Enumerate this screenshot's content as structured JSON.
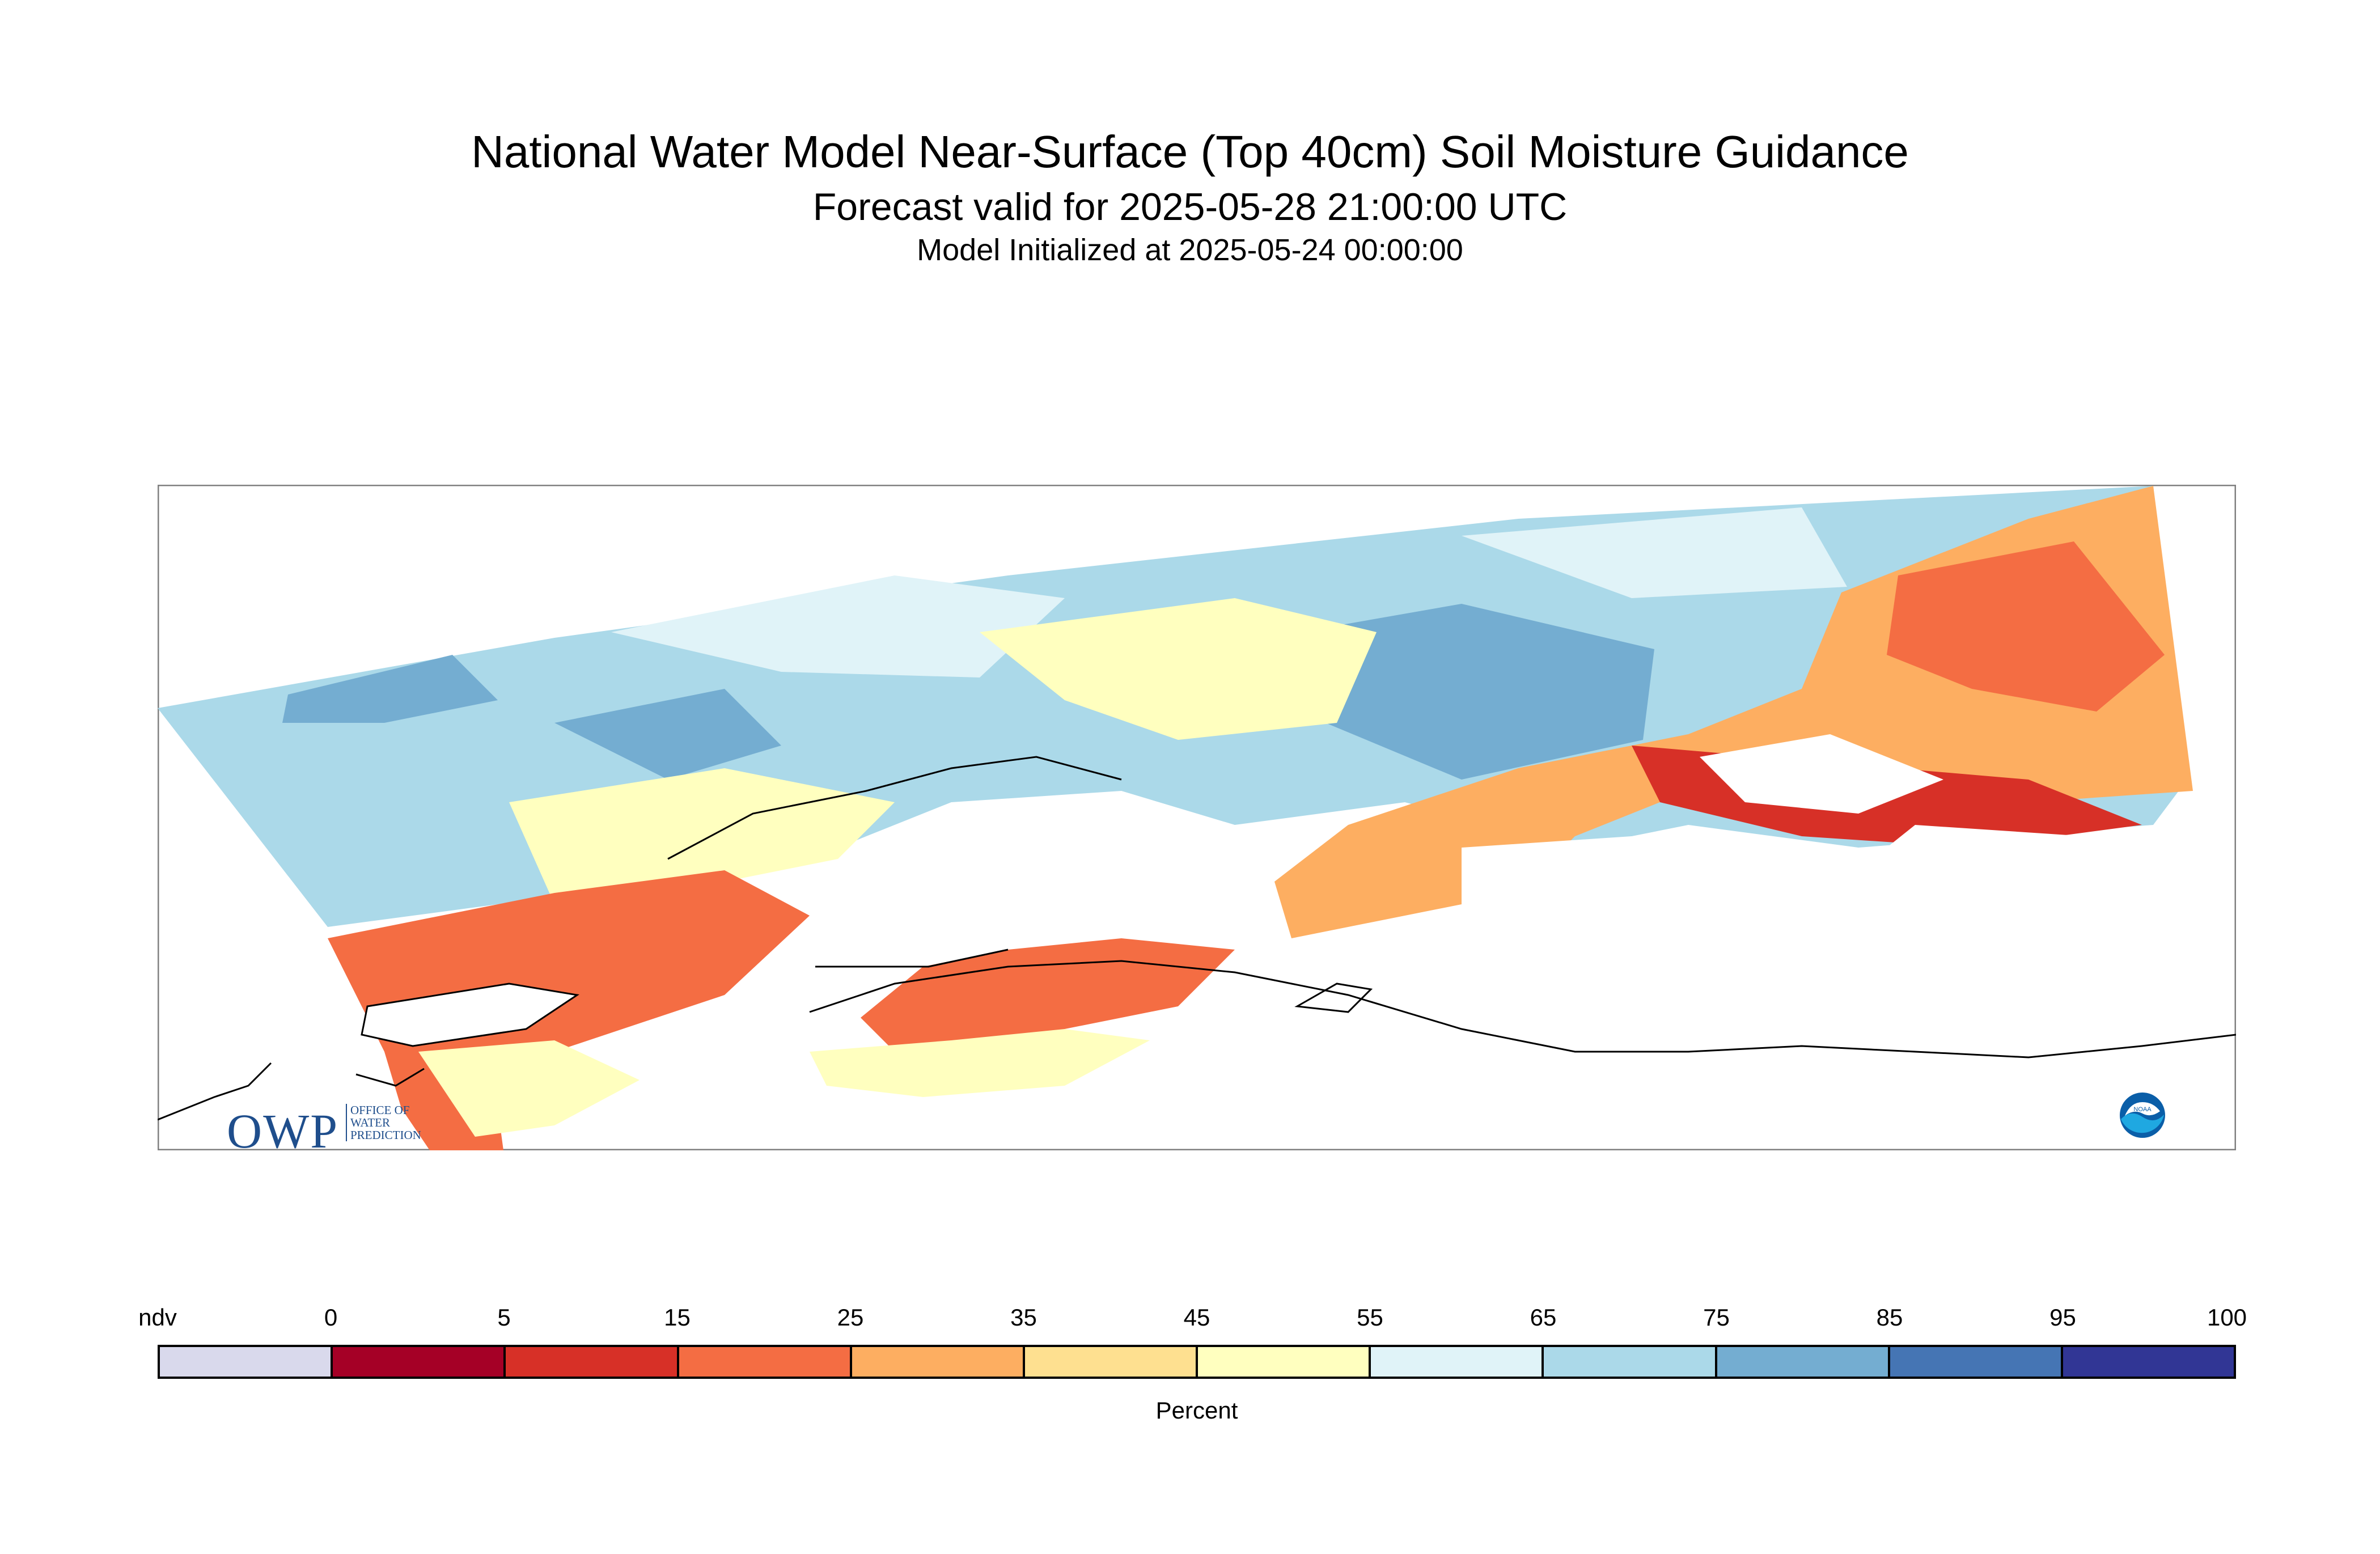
{
  "header": {
    "title": "National Water Model Near-Surface (Top 40cm) Soil Moisture Guidance",
    "subtitle": "Forecast valid for 2025-05-28 21:00:00 UTC",
    "init": "Model Initialized at 2025-05-24 00:00:00"
  },
  "logos": {
    "owp_main": "OWP",
    "owp_lines": [
      "OFFICE OF",
      "WATER",
      "PREDICTION"
    ],
    "noaa_text": "NOAA"
  },
  "legend": {
    "labels": [
      "ndv",
      "0",
      "5",
      "15",
      "25",
      "35",
      "45",
      "55",
      "65",
      "75",
      "85",
      "95",
      "100"
    ],
    "colors": [
      "#d9d9ec",
      "#a50026",
      "#d73027",
      "#f46d43",
      "#fdae61",
      "#fee090",
      "#ffffbf",
      "#e0f3f8",
      "#abd9e9",
      "#74add1",
      "#4575b4",
      "#313695"
    ],
    "unit": "Percent"
  },
  "map_colors": {
    "light_blue": "#abd9e9",
    "mid_blue": "#74add1",
    "pale_blue": "#e0f3f8",
    "pale_yellow": "#ffffbf",
    "tan": "#fee090",
    "orange": "#fdae61",
    "red_orange": "#f46d43",
    "red": "#d73027",
    "frame": "#808080",
    "coast": "#000000"
  }
}
